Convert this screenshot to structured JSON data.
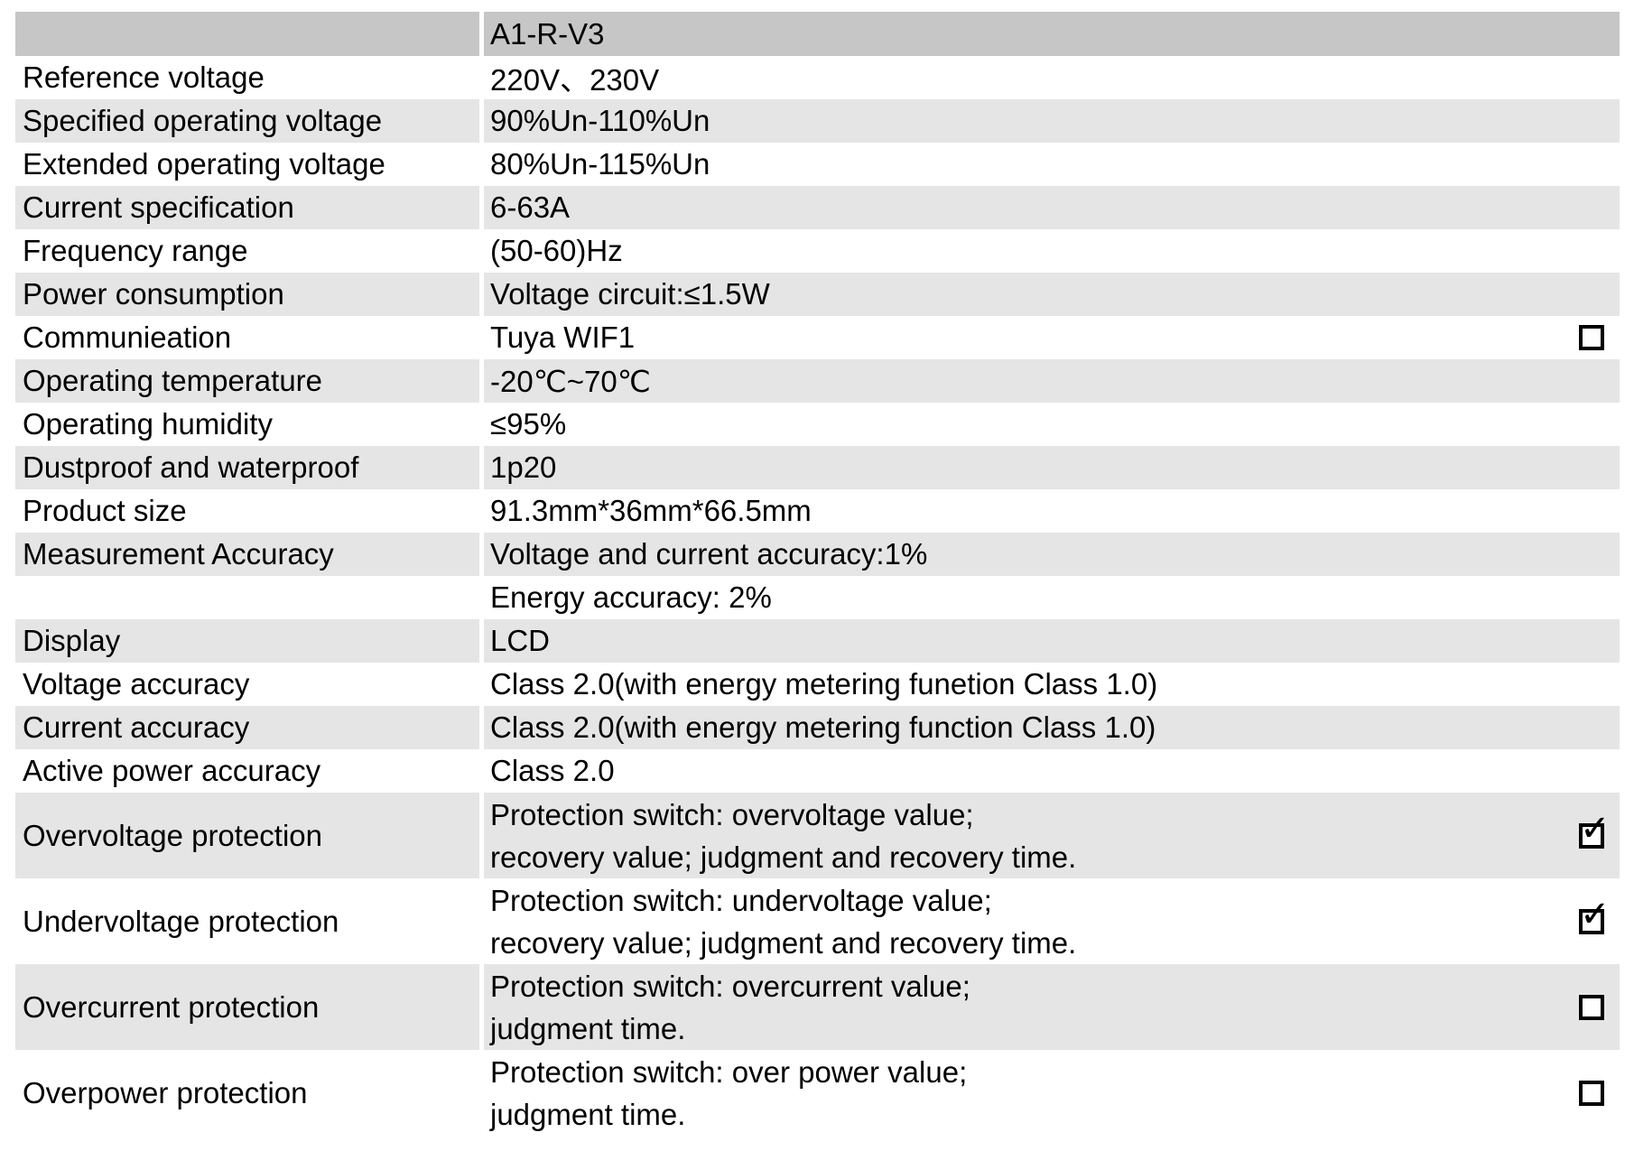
{
  "table": {
    "model_header": {
      "label": "",
      "value": "A1-R-V3"
    },
    "check_glyph": "✓",
    "colors": {
      "header_bg": "#c6c6c6",
      "stripe_bg": "#e5e5e5",
      "text": "#000000",
      "checkbox_border": "#000000"
    },
    "rows": [
      {
        "label": "Reference voltage",
        "value": "220V、230V"
      },
      {
        "label": "Specified operating voltage",
        "value": "90%Un-110%Un"
      },
      {
        "label": "Extended operating voltage",
        "value": "80%Un-115%Un"
      },
      {
        "label": "Current specification",
        "value": "6-63A"
      },
      {
        "label": "Frequency range",
        "value": "(50-60)Hz"
      },
      {
        "label": "Power consumption",
        "value": "Voltage circuit:≤1.5W"
      },
      {
        "label": "Communieation",
        "value": "Tuya WIF1",
        "checkbox": "unchecked"
      },
      {
        "label": "Operating temperature",
        "value": "-20℃~70℃"
      },
      {
        "label": "Operating humidity",
        "value": "≤95%"
      },
      {
        "label": "Dustproof and waterproof",
        "value": "1p20"
      },
      {
        "label": "Product size",
        "value": "91.3mm*36mm*66.5mm"
      },
      {
        "label": "Measurement Accuracy",
        "value": "Voltage and current accuracy:1%"
      },
      {
        "label": "",
        "value": "Energy accuracy: 2%"
      },
      {
        "label": "Display",
        "value": "LCD"
      },
      {
        "label": "Voltage accuracy",
        "value": "Class 2.0(with energy metering funetion Class 1.0)"
      },
      {
        "label": "Current accuracy",
        "value": "Class 2.0(with energy metering function Class 1.0)"
      },
      {
        "label": "Active power accuracy",
        "value": "Class 2.0"
      },
      {
        "label": "Overvoltage protection",
        "value_line1": "Protection switch: overvoltage value;",
        "value_line2": "recovery value; judgment and recovery time.",
        "checkbox": "checked"
      },
      {
        "label": "Undervoltage protection",
        "value_line1": "Protection switch: undervoltage value;",
        "value_line2": "recovery value; judgment and recovery time.",
        "checkbox": "checked"
      },
      {
        "label": "Overcurrent protection",
        "value_line1": "Protection switch: overcurrent value;",
        "value_line2": "judgment time.",
        "checkbox": "unchecked"
      },
      {
        "label": "Overpower protection",
        "value_line1": "Protection switch: over power value;",
        "value_line2": "judgment time.",
        "checkbox": "unchecked"
      }
    ]
  }
}
